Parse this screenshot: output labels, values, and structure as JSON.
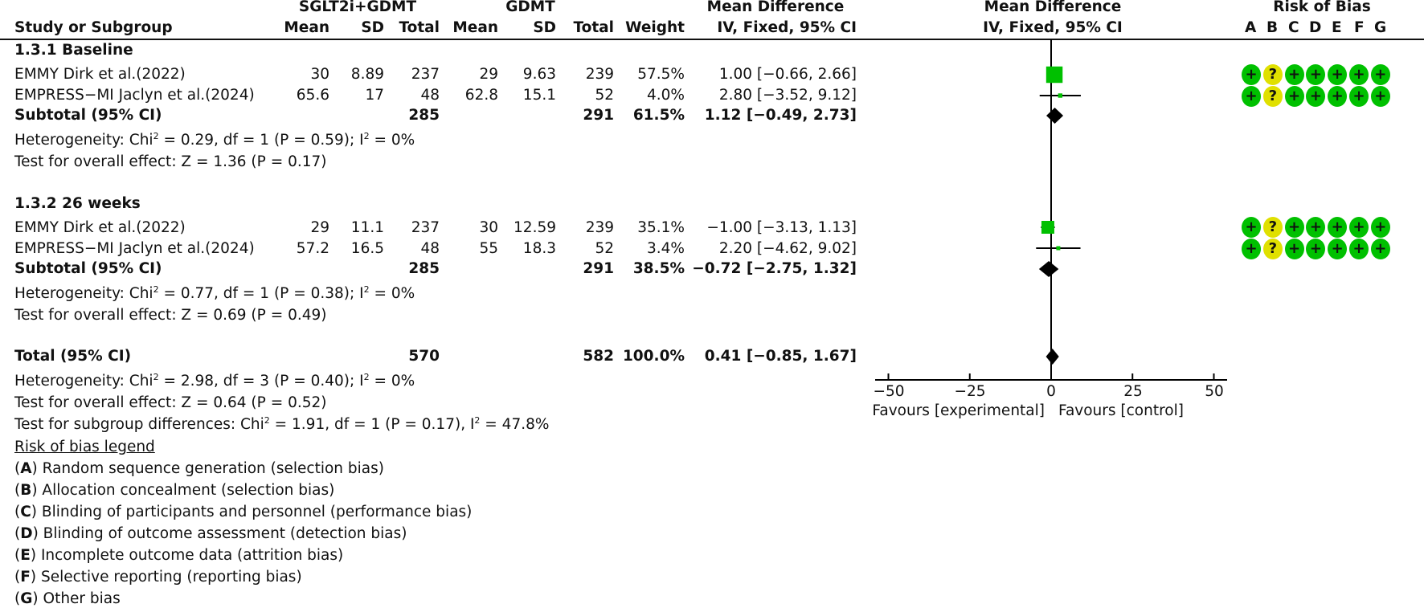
{
  "header": {
    "group1_label": "SGLT2i+GDMT",
    "group2_label": "GDMT",
    "md_label": "Mean Difference",
    "md_plot_label": "Mean Difference",
    "rob_label": "Risk of Bias",
    "columns": {
      "study": "Study or Subgroup",
      "mean1": "Mean",
      "sd1": "SD",
      "total1": "Total",
      "mean2": "Mean",
      "sd2": "SD",
      "total2": "Total",
      "weight": "Weight",
      "ci": "IV, Fixed, 95% CI",
      "plot_ci": "IV, Fixed, 95% CI"
    },
    "rob_domains": [
      "A",
      "B",
      "C",
      "D",
      "E",
      "F",
      "G"
    ]
  },
  "subgroups": [
    {
      "title": "1.3.1 Baseline",
      "studies": [
        {
          "name": "EMMY Dirk et al.(2022)",
          "mean1": "30",
          "sd1": "8.89",
          "total1": "237",
          "mean2": "29",
          "sd2": "9.63",
          "total2": "239",
          "weight": "57.5%",
          "ci": "1.00 [−0.66, 2.66]"
        },
        {
          "name": "EMPRESS−MI Jaclyn et al.(2024)",
          "mean1": "65.6",
          "sd1": "17",
          "total1": "48",
          "mean2": "62.8",
          "sd2": "15.1",
          "total2": "52",
          "weight": "4.0%",
          "ci": "2.80 [−3.52, 9.12]"
        }
      ],
      "subtotal": {
        "label": "Subtotal (95% CI)",
        "total1": "285",
        "total2": "291",
        "weight": "61.5%",
        "ci": "1.12 [−0.49, 2.73]"
      },
      "heterogeneity": {
        "prefix": "Heterogeneity: Chi",
        "mid": " = 0.29, df = 1 (P = 0.59); I",
        "suffix": " = 0%"
      },
      "overall_effect": "Test for overall effect: Z = 1.36 (P = 0.17)"
    },
    {
      "title": "1.3.2 26 weeks",
      "studies": [
        {
          "name": "EMMY Dirk et al.(2022)",
          "mean1": "29",
          "sd1": "11.1",
          "total1": "237",
          "mean2": "30",
          "sd2": "12.59",
          "total2": "239",
          "weight": "35.1%",
          "ci": "−1.00 [−3.13, 1.13]"
        },
        {
          "name": "EMPRESS−MI Jaclyn et al.(2024)",
          "mean1": "57.2",
          "sd1": "16.5",
          "total1": "48",
          "mean2": "55",
          "sd2": "18.3",
          "total2": "52",
          "weight": "3.4%",
          "ci": "2.20 [−4.62, 9.02]"
        }
      ],
      "subtotal": {
        "label": "Subtotal (95% CI)",
        "total1": "285",
        "total2": "291",
        "weight": "38.5%",
        "ci": "−0.72 [−2.75, 1.32]"
      },
      "heterogeneity": {
        "prefix": "Heterogeneity: Chi",
        "mid": " = 0.77, df = 1 (P = 0.38); I",
        "suffix": " = 0%"
      },
      "overall_effect": "Test for overall effect: Z = 0.69 (P = 0.49)"
    }
  ],
  "total": {
    "label": "Total (95% CI)",
    "total1": "570",
    "total2": "582",
    "weight": "100.0%",
    "ci": "0.41 [−0.85, 1.67]",
    "heterogeneity": {
      "prefix": "Heterogeneity: Chi",
      "mid": " = 2.98, df = 3 (P = 0.40); I",
      "suffix": " = 0%"
    },
    "overall_effect": "Test for overall effect: Z = 0.64 (P = 0.52)",
    "subgroup_diff": {
      "prefix": "Test for subgroup differences: Chi",
      "mid": " = 1.91, df = 1 (P = 0.17), I",
      "suffix": " = 47.8%"
    },
    "sup": "2"
  },
  "axis": {
    "ticks": [
      "−50",
      "−25",
      "0",
      "25",
      "50"
    ],
    "favours_left": "Favours [experimental]",
    "favours_right": "Favours [control]"
  },
  "rob_legend": {
    "title": "Risk of bias legend",
    "items": [
      {
        "key": "A",
        "text": " Random sequence generation (selection bias)"
      },
      {
        "key": "B",
        "text": " Allocation concealment (selection bias)"
      },
      {
        "key": "C",
        "text": " Blinding of participants and personnel (performance bias)"
      },
      {
        "key": "D",
        "text": " Blinding of outcome assessment (detection bias)"
      },
      {
        "key": "E",
        "text": " Incomplete outcome data (attrition bias)"
      },
      {
        "key": "F",
        "text": " Selective reporting (reporting bias)"
      },
      {
        "key": "G",
        "text": " Other bias"
      }
    ]
  },
  "rob_symbols": {
    "low": "+",
    "unclear": "?"
  },
  "colors": {
    "low_risk": "#00c000",
    "unclear_risk": "#e0e000",
    "marker": "#00c000",
    "diamond": "#000000"
  },
  "chart_data": {
    "type": "forest",
    "title": "Mean Difference IV, Fixed, 95% CI",
    "xlabel": "Favours [experimental]  Favours [control]",
    "xlim": [
      -50,
      50
    ],
    "xticks": [
      -50,
      -25,
      0,
      25,
      50
    ],
    "subgroups": [
      {
        "name": "1.3.1 Baseline",
        "studies": [
          {
            "study": "EMMY Dirk et al.(2022)",
            "md": 1.0,
            "lower": -0.66,
            "upper": 2.66,
            "weight": 57.5,
            "rob": [
              "+",
              "?",
              "+",
              "+",
              "+",
              "+",
              "+"
            ]
          },
          {
            "study": "EMPRESS-MI Jaclyn et al.(2024)",
            "md": 2.8,
            "lower": -3.52,
            "upper": 9.12,
            "weight": 4.0,
            "rob": [
              "+",
              "?",
              "+",
              "+",
              "+",
              "+",
              "+"
            ]
          }
        ],
        "subtotal": {
          "md": 1.12,
          "lower": -0.49,
          "upper": 2.73,
          "weight": 61.5
        }
      },
      {
        "name": "1.3.2 26 weeks",
        "studies": [
          {
            "study": "EMMY Dirk et al.(2022)",
            "md": -1.0,
            "lower": -3.13,
            "upper": 1.13,
            "weight": 35.1,
            "rob": [
              "+",
              "?",
              "+",
              "+",
              "+",
              "+",
              "+"
            ]
          },
          {
            "study": "EMPRESS-MI Jaclyn et al.(2024)",
            "md": 2.2,
            "lower": -4.62,
            "upper": 9.02,
            "weight": 3.4,
            "rob": [
              "+",
              "?",
              "+",
              "+",
              "+",
              "+",
              "+"
            ]
          }
        ],
        "subtotal": {
          "md": -0.72,
          "lower": -2.75,
          "upper": 1.32,
          "weight": 38.5
        }
      }
    ],
    "overall": {
      "md": 0.41,
      "lower": -0.85,
      "upper": 1.67,
      "weight": 100.0
    }
  }
}
